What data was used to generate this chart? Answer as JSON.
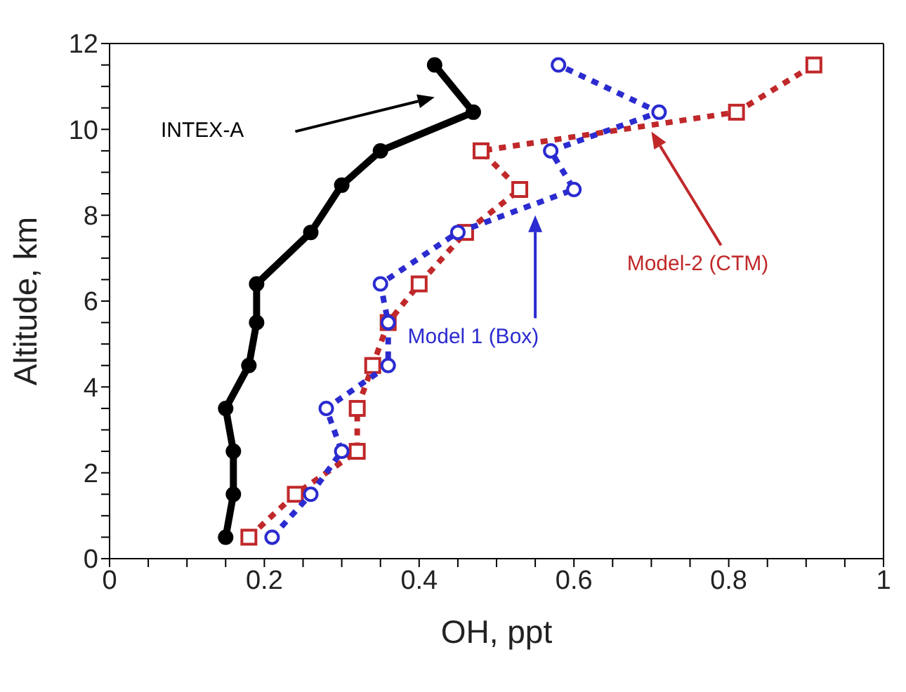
{
  "chart_data": {
    "type": "line",
    "xlabel": "OH, ppt",
    "ylabel": "Altitude, km",
    "xlim": [
      0,
      1
    ],
    "ylim": [
      0,
      12
    ],
    "xticks": [
      0,
      {
        "value": 0.05,
        "label": null
      },
      {
        "value": 0.1,
        "label": null
      },
      {
        "value": 0.15,
        "label": null
      },
      0.2,
      {
        "value": 0.25,
        "label": null
      },
      {
        "value": 0.3,
        "label": null
      },
      {
        "value": 0.35,
        "label": null
      },
      0.4,
      {
        "value": 0.45,
        "label": null
      },
      {
        "value": 0.5,
        "label": null
      },
      {
        "value": 0.55,
        "label": null
      },
      0.6,
      {
        "value": 0.65,
        "label": null
      },
      {
        "value": 0.7,
        "label": null
      },
      {
        "value": 0.75,
        "label": null
      },
      0.8,
      {
        "value": 0.85,
        "label": null
      },
      {
        "value": 0.9,
        "label": null
      },
      {
        "value": 0.95,
        "label": null
      },
      1
    ],
    "yticks": [
      0,
      {
        "value": 0.5,
        "label": null
      },
      {
        "value": 1,
        "label": null
      },
      {
        "value": 1.5,
        "label": null
      },
      2,
      {
        "value": 2.5,
        "label": null
      },
      {
        "value": 3,
        "label": null
      },
      {
        "value": 3.5,
        "label": null
      },
      4,
      {
        "value": 4.5,
        "label": null
      },
      {
        "value": 5,
        "label": null
      },
      {
        "value": 5.5,
        "label": null
      },
      6,
      {
        "value": 6.5,
        "label": null
      },
      {
        "value": 7,
        "label": null
      },
      {
        "value": 7.5,
        "label": null
      },
      8,
      {
        "value": 8.5,
        "label": null
      },
      {
        "value": 9,
        "label": null
      },
      {
        "value": 9.5,
        "label": null
      },
      10,
      {
        "value": 10.5,
        "label": null
      },
      {
        "value": 11,
        "label": null
      },
      {
        "value": 11.5,
        "label": null
      },
      12
    ],
    "grid": false,
    "legend": false,
    "series": [
      {
        "name": "INTEX-A",
        "color": "#000000",
        "marker": "circle",
        "line_style": "solid",
        "x": [
          0.15,
          0.16,
          0.16,
          0.15,
          0.18,
          0.19,
          0.19,
          0.26,
          0.3,
          0.35,
          0.47,
          0.42
        ],
        "values": [
          0.5,
          1.5,
          2.5,
          3.5,
          4.5,
          5.5,
          6.4,
          7.6,
          8.7,
          9.5,
          10.4,
          11.5
        ]
      },
      {
        "name": "Model 1 (Box)",
        "color": "#2b2bd0",
        "marker": "circle",
        "line_style": "dotted",
        "x": [
          0.21,
          0.26,
          0.3,
          0.28,
          0.36,
          0.36,
          0.35,
          0.45,
          0.6,
          0.57,
          0.71,
          0.58
        ],
        "values": [
          0.5,
          1.5,
          2.5,
          3.5,
          4.5,
          5.5,
          6.4,
          7.6,
          8.6,
          9.5,
          10.4,
          11.5
        ]
      },
      {
        "name": "Model-2 (CTM)",
        "color": "#c0282a",
        "marker": "square",
        "line_style": "dotted",
        "x": [
          0.18,
          0.24,
          0.32,
          0.32,
          0.34,
          0.36,
          0.4,
          0.46,
          0.53,
          0.48,
          0.81,
          0.91
        ],
        "values": [
          0.5,
          1.5,
          2.5,
          3.5,
          4.5,
          5.5,
          6.4,
          7.6,
          8.6,
          9.5,
          10.4,
          11.5
        ]
      }
    ]
  }
}
